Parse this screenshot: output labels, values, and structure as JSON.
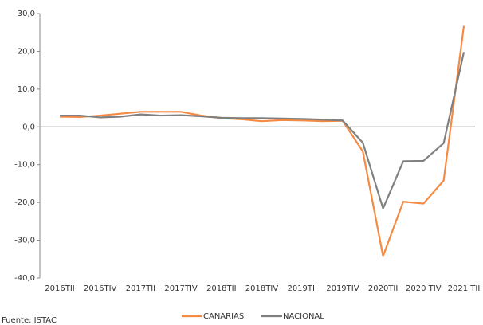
{
  "chart_data": {
    "type": "line",
    "categories": [
      "2016TII",
      null,
      "2016TIV",
      null,
      "2017TII",
      null,
      "2017TIV",
      null,
      "2018TII",
      null,
      "2018TIV",
      null,
      "2019TII",
      null,
      "2019TIV",
      null,
      "2020TII",
      null,
      "2020 TIV",
      null,
      "2021 TII"
    ],
    "series": [
      {
        "name": "CANARIAS",
        "color": "#f58a42",
        "values": [
          2.7,
          2.6,
          3.0,
          3.5,
          4.0,
          4.0,
          4.0,
          3.0,
          2.3,
          2.0,
          1.5,
          1.8,
          1.7,
          1.5,
          1.6,
          -6.5,
          -34.2,
          -19.8,
          -20.3,
          -14.2,
          26.7
        ]
      },
      {
        "name": "NACIONAL",
        "color": "#808080",
        "values": [
          3.0,
          3.0,
          2.5,
          2.7,
          3.3,
          3.0,
          3.1,
          2.8,
          2.4,
          2.3,
          2.3,
          2.2,
          2.1,
          1.9,
          1.7,
          -4.2,
          -21.6,
          -9.1,
          -9.0,
          -4.3,
          19.8
        ]
      }
    ],
    "ylim": [
      -40,
      30
    ],
    "yticks": [
      {
        "value": -40,
        "label": "-40,0"
      },
      {
        "value": -30,
        "label": "-30,0"
      },
      {
        "value": -20,
        "label": "-20,0"
      },
      {
        "value": -10,
        "label": "-10,0"
      },
      {
        "value": 0,
        "label": "0,0"
      },
      {
        "value": 10,
        "label": "10,0"
      },
      {
        "value": 20,
        "label": "20,0"
      },
      {
        "value": 30,
        "label": "30,0"
      }
    ],
    "note": "Fuente: ISTAC",
    "legend": "bottom"
  }
}
